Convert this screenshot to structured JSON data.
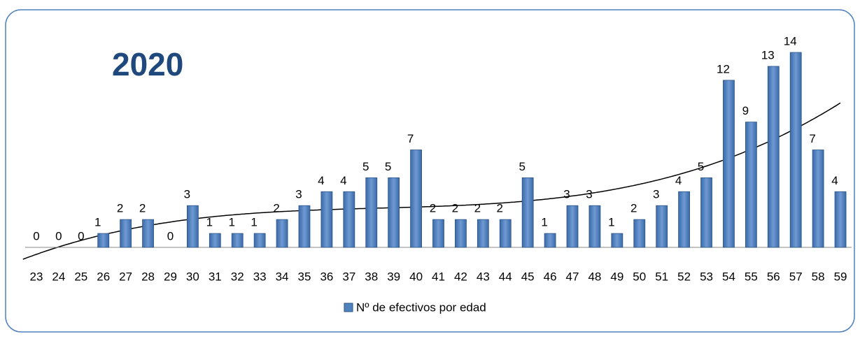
{
  "chart_data": {
    "type": "bar",
    "title": "2020",
    "categories": [
      "23",
      "24",
      "25",
      "26",
      "27",
      "28",
      "29",
      "30",
      "31",
      "32",
      "33",
      "34",
      "35",
      "36",
      "37",
      "38",
      "39",
      "40",
      "41",
      "42",
      "43",
      "44",
      "45",
      "46",
      "47",
      "48",
      "49",
      "50",
      "51",
      "52",
      "53",
      "54",
      "55",
      "56",
      "57",
      "58",
      "59"
    ],
    "series": [
      {
        "name": "Nº de efectivos por edad",
        "color": "#4f81bd",
        "values": [
          0,
          0,
          0,
          1,
          2,
          2,
          0,
          3,
          1,
          1,
          1,
          2,
          3,
          4,
          4,
          5,
          5,
          7,
          2,
          2,
          2,
          2,
          5,
          1,
          3,
          3,
          1,
          2,
          3,
          4,
          5,
          12,
          9,
          13,
          14,
          7,
          4
        ]
      }
    ],
    "data_labels": true,
    "legend": "bottom",
    "trendline": {
      "type": "polynomial",
      "order": 3,
      "color": "#000000"
    }
  }
}
